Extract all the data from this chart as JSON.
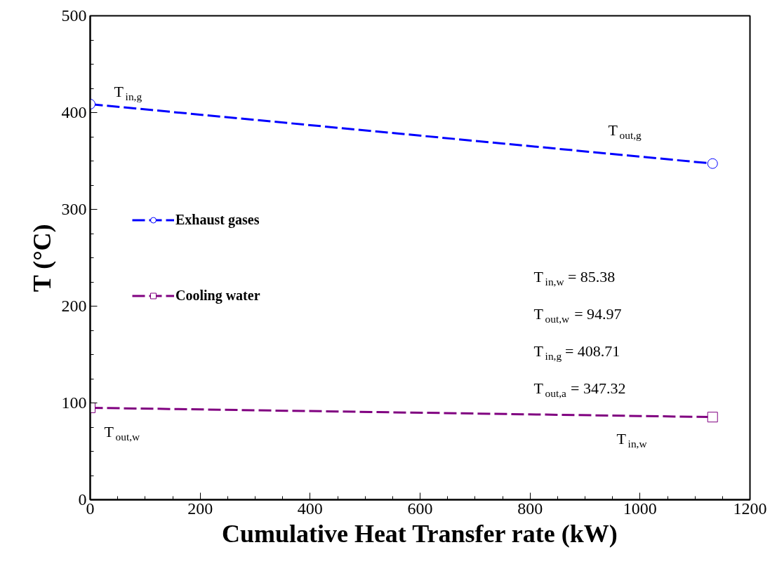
{
  "chart_data": {
    "type": "line",
    "xlabel": "Cumulative Heat Transfer rate (kW)",
    "ylabel": "T (°C)",
    "x": [
      0,
      1132
    ],
    "series": [
      {
        "name": "Exhaust gases",
        "color": "#0000ff",
        "values": [
          408.71,
          347.32
        ],
        "marker": "circle",
        "line_style": "dashed"
      },
      {
        "name": "Cooling water",
        "color": "#800080",
        "values": [
          94.97,
          85.38
        ],
        "marker": "square",
        "line_style": "dashed"
      }
    ],
    "xlim": [
      0,
      1200
    ],
    "ylim": [
      0,
      500
    ],
    "xticks": [
      0,
      200,
      400,
      600,
      800,
      1000,
      1200
    ],
    "yticks": [
      0,
      100,
      200,
      300,
      400,
      500
    ],
    "grid": false,
    "legend": "left",
    "annotations": [
      "T$_{in,g}$",
      "T$_{out,g}$",
      "T$_{out,w}$",
      "T$_{in,w}$",
      "T$_{in,w}$ = 85.38",
      "T$_{out,w}$ = 94.97",
      "T$_{in,g}$ = 408.71",
      "T$_{out,a}$ = 347.32"
    ]
  }
}
